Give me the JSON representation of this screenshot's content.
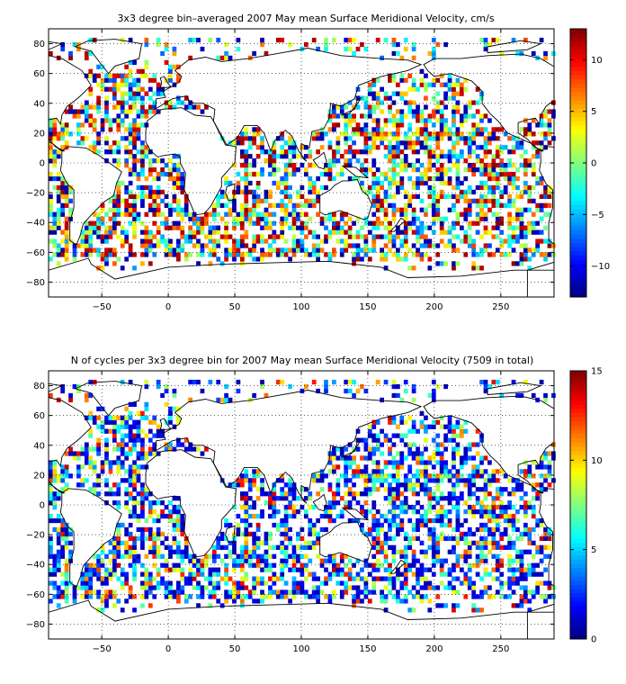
{
  "chart_data": [
    {
      "type": "heatmap",
      "title": "3x3 degree bin–averaged 2007 May mean Surface Meridional Velocity, cm/s",
      "xlim": [
        -90,
        290
      ],
      "ylim": [
        -90,
        90
      ],
      "xticks": [
        -50,
        0,
        50,
        100,
        150,
        200,
        250
      ],
      "yticks": [
        -80,
        -60,
        -40,
        -20,
        0,
        20,
        40,
        60,
        80
      ],
      "grid": true,
      "bin_size_deg": 3,
      "colorbar": {
        "min": -13,
        "max": 13,
        "ticks": [
          -10,
          -5,
          0,
          5,
          10
        ],
        "colormap": "jet"
      },
      "bin_density": 0.55,
      "seed": 17
    },
    {
      "type": "heatmap",
      "title": "N of cycles per 3x3 degree bin for 2007 May mean Surface Meridional Velocity (7509 in total)",
      "xlim": [
        -90,
        290
      ],
      "ylim": [
        -90,
        90
      ],
      "xticks": [
        -50,
        0,
        50,
        100,
        150,
        200,
        250
      ],
      "yticks": [
        -80,
        -60,
        -40,
        -20,
        0,
        20,
        40,
        60,
        80
      ],
      "grid": true,
      "bin_size_deg": 3,
      "colorbar": {
        "min": 0,
        "max": 15,
        "ticks": [
          0,
          5,
          10,
          15
        ],
        "colormap": "jet"
      },
      "bin_density": 0.55,
      "seed": 17
    }
  ]
}
